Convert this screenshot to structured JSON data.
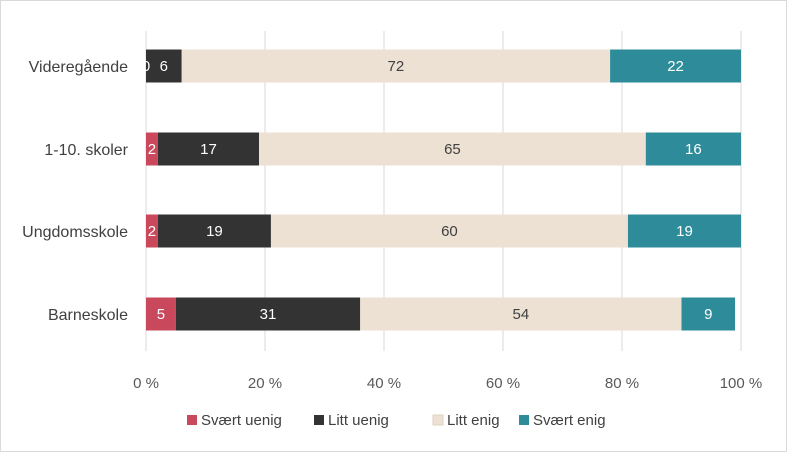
{
  "chart_data": {
    "type": "bar",
    "orientation": "horizontal",
    "stacked": true,
    "categories": [
      "Videregående",
      "1-10. skoler",
      "Ungdomsskole",
      "Barneskole"
    ],
    "series": [
      {
        "name": "Svært uenig",
        "color": "#c9485b",
        "values": [
          0,
          2,
          2,
          5
        ]
      },
      {
        "name": "Litt uenig",
        "color": "#333333",
        "values": [
          6,
          17,
          19,
          31
        ]
      },
      {
        "name": "Litt enig",
        "color": "#ede1d3",
        "values": [
          72,
          65,
          60,
          54
        ]
      },
      {
        "name": "Svært enig",
        "color": "#2e8c9a",
        "values": [
          22,
          16,
          19,
          9
        ]
      }
    ],
    "xticks": [
      "0 %",
      "20 %",
      "40 %",
      "60 %",
      "80 %",
      "100 %"
    ],
    "xlim": [
      0,
      100
    ],
    "grid": true,
    "legend": "bottom",
    "data_label_colors": {
      "Svært uenig": "#ffffff",
      "Litt uenig": "#ffffff",
      "Litt enig": "#404040",
      "Svært enig": "#ffffff"
    }
  }
}
